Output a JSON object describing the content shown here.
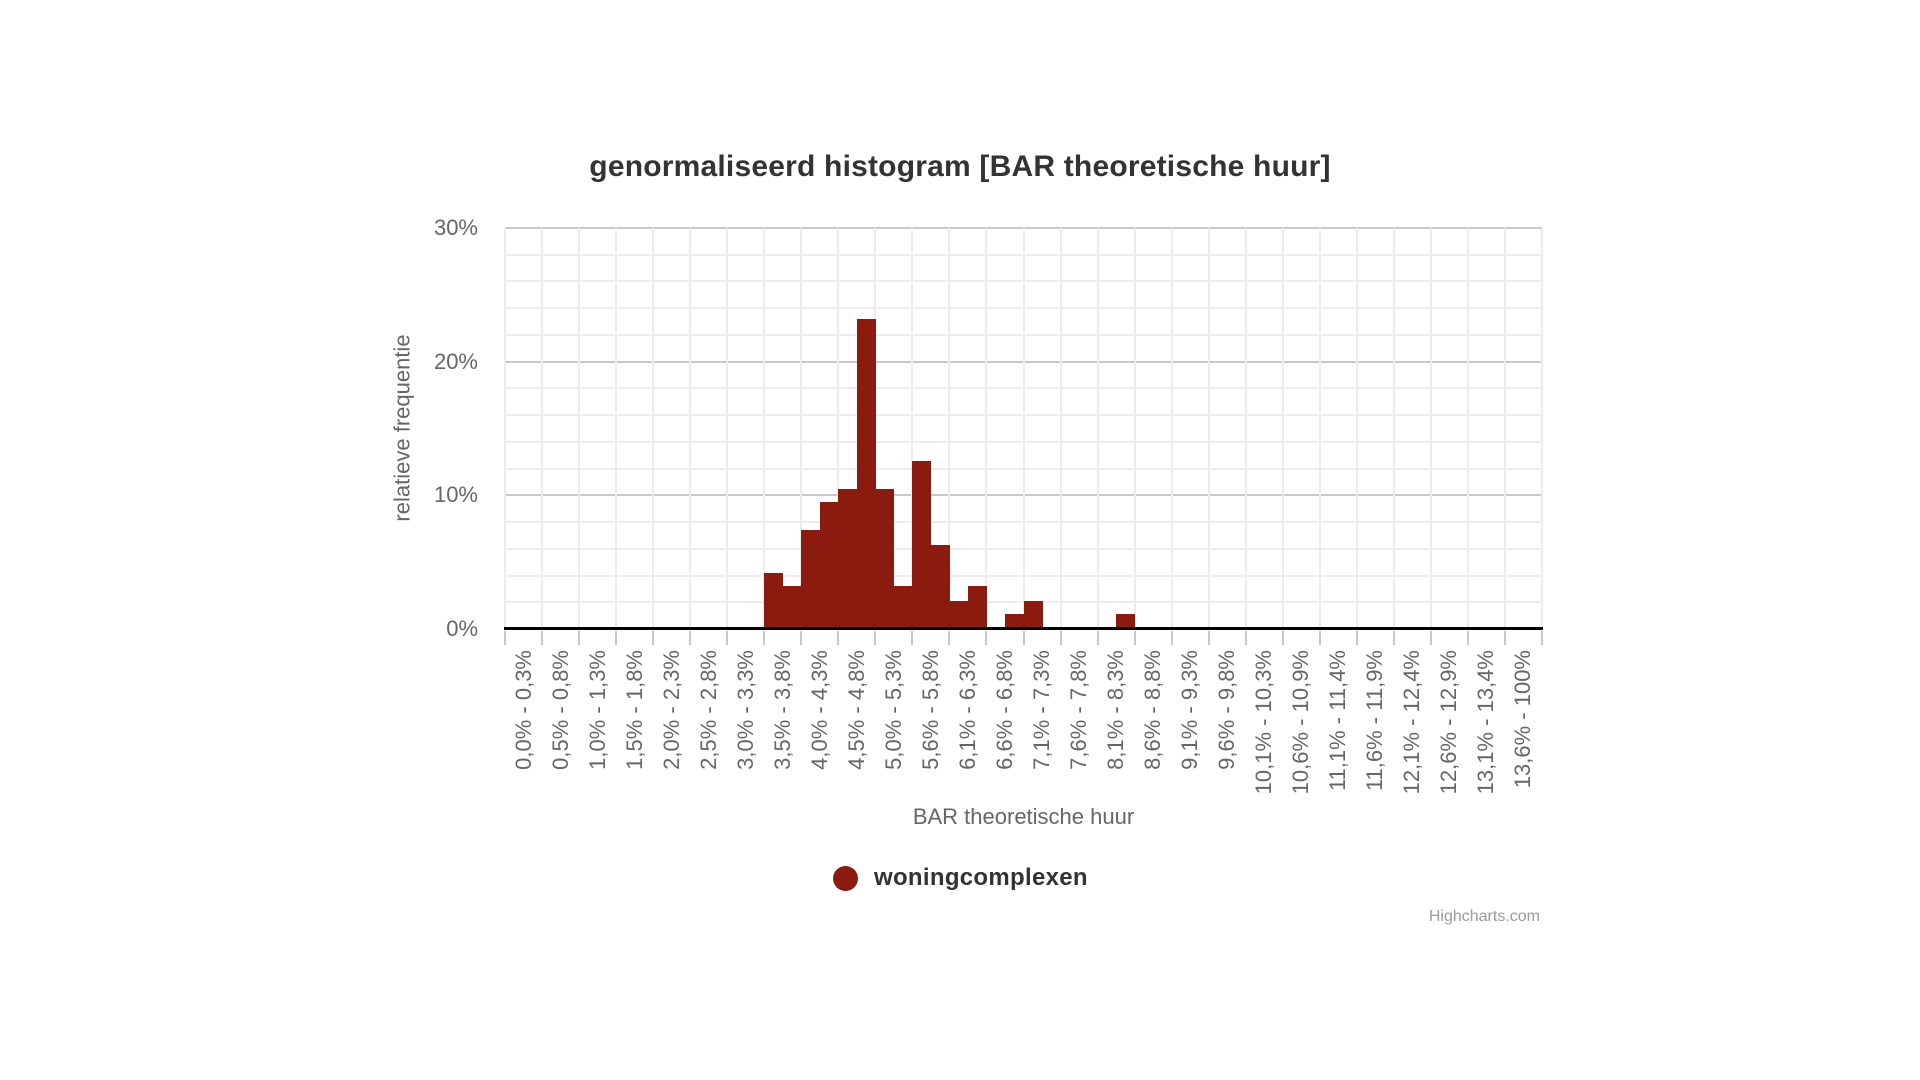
{
  "chart": {
    "title": "genormaliseerd histogram [BAR theoretische huur]",
    "x_axis_title": "BAR theoretische huur",
    "y_axis_title": "relatieve frequentie",
    "legend": {
      "label": "woningcomplexen"
    },
    "credits": "Highcharts.com",
    "colors": {
      "series": "#8B1A0F",
      "title_text": "#333333",
      "axis_text": "#666666",
      "credits_text": "#9a9a9a",
      "major_grid": "#c9c9c9",
      "minor_grid": "#ededed",
      "axis_line": "#000000",
      "background": "#ffffff"
    }
  },
  "chart_data": {
    "type": "bar",
    "subtype": "normalized-histogram",
    "title": "genormaliseerd histogram [BAR theoretische huur]",
    "xlabel": "BAR theoretische huur",
    "ylabel": "relatieve frequentie",
    "ylim": [
      0,
      30
    ],
    "grid": "on",
    "legend_position": "bottom-center",
    "y_tick_step_major": 10,
    "y_tick_step_minor": 2,
    "y_ticks": [
      {
        "value": 0,
        "label": "0%"
      },
      {
        "value": 10,
        "label": "10%"
      },
      {
        "value": 20,
        "label": "20%"
      },
      {
        "value": 30,
        "label": "30%"
      }
    ],
    "x_tick_labels": [
      "0,0% - 0,3%",
      "0,5% - 0,8%",
      "1,0% - 1,3%",
      "1,5% - 1,8%",
      "2,0% - 2,3%",
      "2,5% - 2,8%",
      "3,0% - 3,3%",
      "3,5% - 3,8%",
      "4,0% - 4,3%",
      "4,5% - 4,8%",
      "5,0% - 5,3%",
      "5,6% - 5,8%",
      "6,1% - 6,3%",
      "6,6% - 6,8%",
      "7,1% - 7,3%",
      "7,6% - 7,8%",
      "8,1% - 8,3%",
      "8,6% - 8,8%",
      "9,1% - 9,3%",
      "9,6% - 9,8%",
      "10,1% - 10,3%",
      "10,6% - 10,9%",
      "11,1% - 11,4%",
      "11,6% - 11,9%",
      "12,1% - 12,4%",
      "12,6% - 12,9%",
      "13,1% - 13,4%",
      "13,6% - 100%"
    ],
    "bins_total": 56,
    "bins_per_tick_label": 2,
    "series": [
      {
        "name": "woningcomplexen",
        "color": "#8B1A0F",
        "points": [
          {
            "bin": 14,
            "range": "3,5% - 3,8%",
            "value": 4.2
          },
          {
            "bin": 15,
            "range": "3,8% - 4,0%",
            "value": 3.2
          },
          {
            "bin": 16,
            "range": "4,0% - 4,3%",
            "value": 7.4
          },
          {
            "bin": 17,
            "range": "4,3% - 4,5%",
            "value": 9.5
          },
          {
            "bin": 18,
            "range": "4,5% - 4,8%",
            "value": 10.5
          },
          {
            "bin": 19,
            "range": "4,8% - 5,0%",
            "value": 23.2
          },
          {
            "bin": 20,
            "range": "5,0% - 5,3%",
            "value": 10.5
          },
          {
            "bin": 21,
            "range": "5,3% - 5,6%",
            "value": 3.2
          },
          {
            "bin": 22,
            "range": "5,6% - 5,8%",
            "value": 12.6
          },
          {
            "bin": 23,
            "range": "5,8% - 6,1%",
            "value": 6.3
          },
          {
            "bin": 24,
            "range": "6,1% - 6,3%",
            "value": 2.1
          },
          {
            "bin": 25,
            "range": "6,3% - 6,6%",
            "value": 3.2
          },
          {
            "bin": 27,
            "range": "6,8% - 7,1%",
            "value": 1.1
          },
          {
            "bin": 28,
            "range": "7,1% - 7,3%",
            "value": 2.1
          },
          {
            "bin": 33,
            "range": "8,3% - 8,6%",
            "value": 1.1
          }
        ]
      }
    ]
  }
}
